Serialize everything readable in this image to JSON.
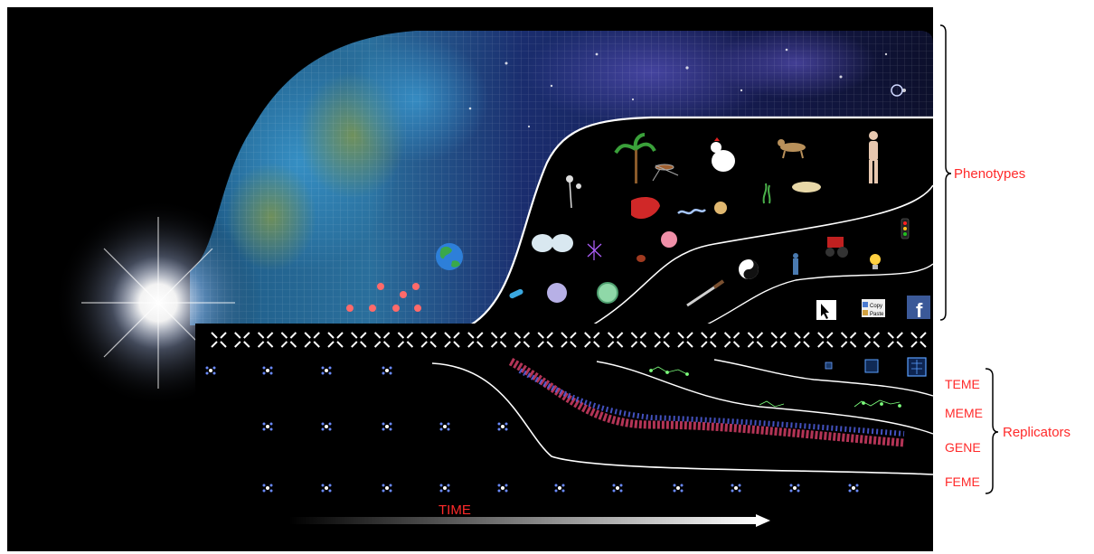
{
  "labels": {
    "phenotypes": "Phenotypes",
    "replicators": "Replicators",
    "teme": "TEME",
    "meme": "MEME",
    "gene": "GENE",
    "feme": "FEME",
    "time": "TIME"
  },
  "icons": {
    "copy": "Copy",
    "paste": "Paste",
    "facebook": "f"
  },
  "colors": {
    "label": "#ff2a2a",
    "background": "#000000",
    "frame": "#ffffff"
  }
}
